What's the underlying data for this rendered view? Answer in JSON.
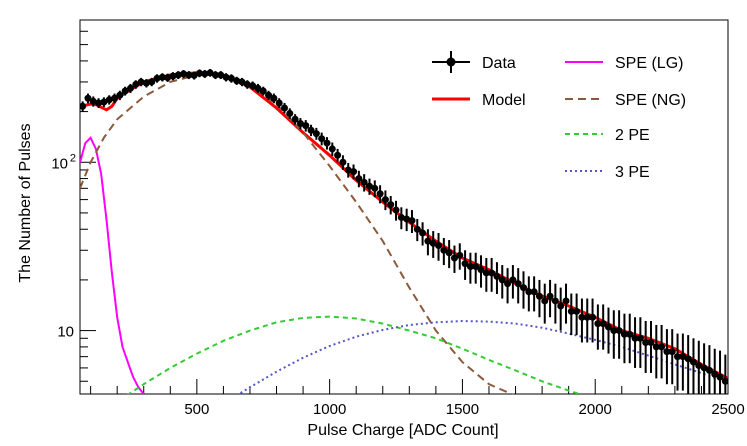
{
  "chart_data": {
    "type": "scatter",
    "title": "",
    "xlabel": "Pulse Charge [ADC Count]",
    "ylabel": "The Number of Pulses",
    "xlim": [
      60,
      2500
    ],
    "ylim": [
      4.2,
      700
    ],
    "yscale": "log",
    "x_ticks": [
      {
        "value": 500,
        "label": "500"
      },
      {
        "value": 1000,
        "label": "1000"
      },
      {
        "value": 1500,
        "label": "1500"
      },
      {
        "value": 2000,
        "label": "2000"
      },
      {
        "value": 2500,
        "label": "2500"
      }
    ],
    "y_ticks": [
      {
        "value": 10,
        "label": "10",
        "sup": ""
      },
      {
        "value": 100,
        "label": "10",
        "sup": "2"
      }
    ],
    "legend_position": "top-right",
    "series": [
      {
        "name": "Data",
        "kind": "points",
        "color": "#000000",
        "x": [
          70,
          90,
          110,
          130,
          150,
          170,
          190,
          210,
          230,
          250,
          270,
          290,
          310,
          330,
          350,
          370,
          390,
          410,
          430,
          450,
          470,
          490,
          510,
          530,
          550,
          570,
          590,
          610,
          630,
          650,
          670,
          690,
          710,
          730,
          750,
          770,
          790,
          810,
          830,
          850,
          870,
          890,
          910,
          930,
          950,
          970,
          990,
          1010,
          1030,
          1050,
          1070,
          1090,
          1110,
          1130,
          1150,
          1170,
          1190,
          1210,
          1230,
          1250,
          1270,
          1290,
          1310,
          1330,
          1350,
          1370,
          1390,
          1410,
          1430,
          1450,
          1470,
          1490,
          1510,
          1530,
          1550,
          1570,
          1590,
          1610,
          1630,
          1650,
          1670,
          1690,
          1710,
          1730,
          1750,
          1770,
          1790,
          1810,
          1830,
          1850,
          1870,
          1890,
          1910,
          1930,
          1950,
          1970,
          1990,
          2010,
          2030,
          2050,
          2070,
          2090,
          2110,
          2130,
          2150,
          2170,
          2190,
          2210,
          2230,
          2250,
          2270,
          2290,
          2310,
          2330,
          2350,
          2370,
          2390,
          2410,
          2430,
          2450,
          2470,
          2490
        ],
        "y": [
          215,
          240,
          230,
          225,
          228,
          235,
          240,
          250,
          265,
          275,
          290,
          300,
          295,
          300,
          315,
          320,
          318,
          325,
          330,
          335,
          330,
          328,
          338,
          335,
          340,
          330,
          330,
          320,
          315,
          305,
          300,
          290,
          285,
          275,
          265,
          250,
          240,
          225,
          210,
          195,
          180,
          170,
          165,
          155,
          148,
          138,
          130,
          120,
          110,
          100,
          90,
          88,
          80,
          76,
          72,
          70,
          65,
          60,
          56,
          52,
          47,
          46,
          45,
          40,
          38,
          34,
          33,
          32,
          30,
          29,
          27,
          28,
          25,
          24,
          24,
          23,
          22,
          22,
          21,
          20,
          19,
          20,
          19,
          18,
          17,
          17,
          16,
          15,
          16,
          15,
          14,
          15,
          13,
          13,
          12,
          12,
          12,
          11,
          11,
          10.5,
          10,
          10,
          9.5,
          9.5,
          9,
          9,
          8.5,
          8.5,
          8,
          8,
          7.5,
          7.5,
          7,
          7,
          6.8,
          6.5,
          6.2,
          6,
          5.8,
          5.5,
          5.3,
          5
        ],
        "y_err": [
          15,
          16,
          16,
          15,
          15,
          15,
          16,
          16,
          16,
          17,
          17,
          17,
          17,
          17,
          18,
          18,
          18,
          18,
          18,
          18,
          18,
          18,
          18,
          18,
          18,
          18,
          18,
          18,
          18,
          17,
          17,
          17,
          17,
          17,
          16,
          16,
          16,
          15,
          15,
          14,
          13,
          13,
          13,
          12,
          12,
          12,
          11,
          11,
          10,
          10,
          9,
          9,
          9,
          9,
          8,
          8,
          8,
          8,
          7,
          7,
          7,
          7,
          7,
          6,
          6,
          6,
          6,
          6,
          5.5,
          5.5,
          5,
          5,
          5,
          5,
          5,
          5,
          5,
          5,
          4.5,
          4.5,
          4.5,
          4.5,
          4.5,
          4.5,
          4,
          4,
          4,
          4,
          4,
          4,
          4,
          4,
          3.6,
          3.6,
          3.5,
          3.5,
          3.5,
          3.3,
          3.3,
          3.2,
          3.2,
          3.2,
          3.1,
          3.1,
          3,
          3,
          2.9,
          2.9,
          2.8,
          2.8,
          2.7,
          2.7,
          2.6,
          2.6,
          2.6,
          2.5,
          2.5,
          2.4,
          2.4,
          2.3,
          2.3,
          2.2
        ]
      },
      {
        "name": "Model",
        "kind": "line",
        "color": "#ff0000",
        "dash": "solid",
        "x": [
          60,
          80,
          100,
          120,
          140,
          160,
          180,
          200,
          250,
          300,
          400,
          500,
          600,
          700,
          800,
          900,
          1000,
          1100,
          1200,
          1300,
          1400,
          1500,
          1600,
          1700,
          1800,
          1900,
          2000,
          2100,
          2200,
          2300,
          2400,
          2500
        ],
        "y": [
          210,
          218,
          222,
          220,
          212,
          205,
          215,
          240,
          270,
          300,
          330,
          340,
          330,
          280,
          210,
          150,
          110,
          78,
          58,
          44,
          34,
          27,
          23,
          19,
          16,
          14,
          12,
          10,
          9,
          7.8,
          6.3,
          5.2
        ]
      },
      {
        "name": "SPE (LG)",
        "kind": "line",
        "color": "#ff00ff",
        "dash": "solid",
        "x": [
          60,
          80,
          100,
          120,
          140,
          160,
          180,
          200,
          220,
          240,
          260,
          280,
          300
        ],
        "y": [
          100,
          130,
          140,
          120,
          85,
          45,
          22,
          12,
          8,
          6.5,
          5.3,
          4.6,
          4.2
        ]
      },
      {
        "name": "SPE (NG)",
        "kind": "line",
        "color": "#8b5a3c",
        "dash": "8,5",
        "x": [
          60,
          100,
          150,
          200,
          300,
          400,
          500,
          600,
          700,
          800,
          900,
          1000,
          1100,
          1200,
          1300,
          1400,
          1500,
          1600,
          1700
        ],
        "y": [
          70,
          100,
          140,
          180,
          245,
          300,
          330,
          330,
          290,
          220,
          150,
          95,
          58,
          34,
          18,
          10,
          6.5,
          4.8,
          4.1
        ]
      },
      {
        "name": "2 PE",
        "kind": "line",
        "color": "#33cc33",
        "dash": "5,4",
        "x": [
          180,
          300,
          400,
          500,
          600,
          700,
          800,
          900,
          1000,
          1100,
          1200,
          1300,
          1400,
          1500,
          1600,
          1700,
          1800,
          1900,
          1960
        ],
        "y": [
          3.6,
          4.8,
          6,
          7.3,
          8.7,
          10,
          11.2,
          11.9,
          12.1,
          11.8,
          11,
          10,
          9,
          7.8,
          6.7,
          5.8,
          5,
          4.4,
          4.1
        ]
      },
      {
        "name": "3 PE",
        "kind": "line",
        "color": "#5555cc",
        "dash": "2,3",
        "x": [
          600,
          700,
          800,
          900,
          1000,
          1100,
          1200,
          1300,
          1400,
          1500,
          1600,
          1700,
          1800,
          1900,
          2000,
          2100,
          2200,
          2300,
          2400,
          2500
        ],
        "y": [
          3.7,
          4.6,
          5.7,
          6.9,
          8.1,
          9.2,
          10.1,
          10.8,
          11.2,
          11.4,
          11.3,
          11,
          10.4,
          9.6,
          8.8,
          8,
          7.1,
          6.3,
          5.6,
          4.9
        ]
      }
    ]
  }
}
